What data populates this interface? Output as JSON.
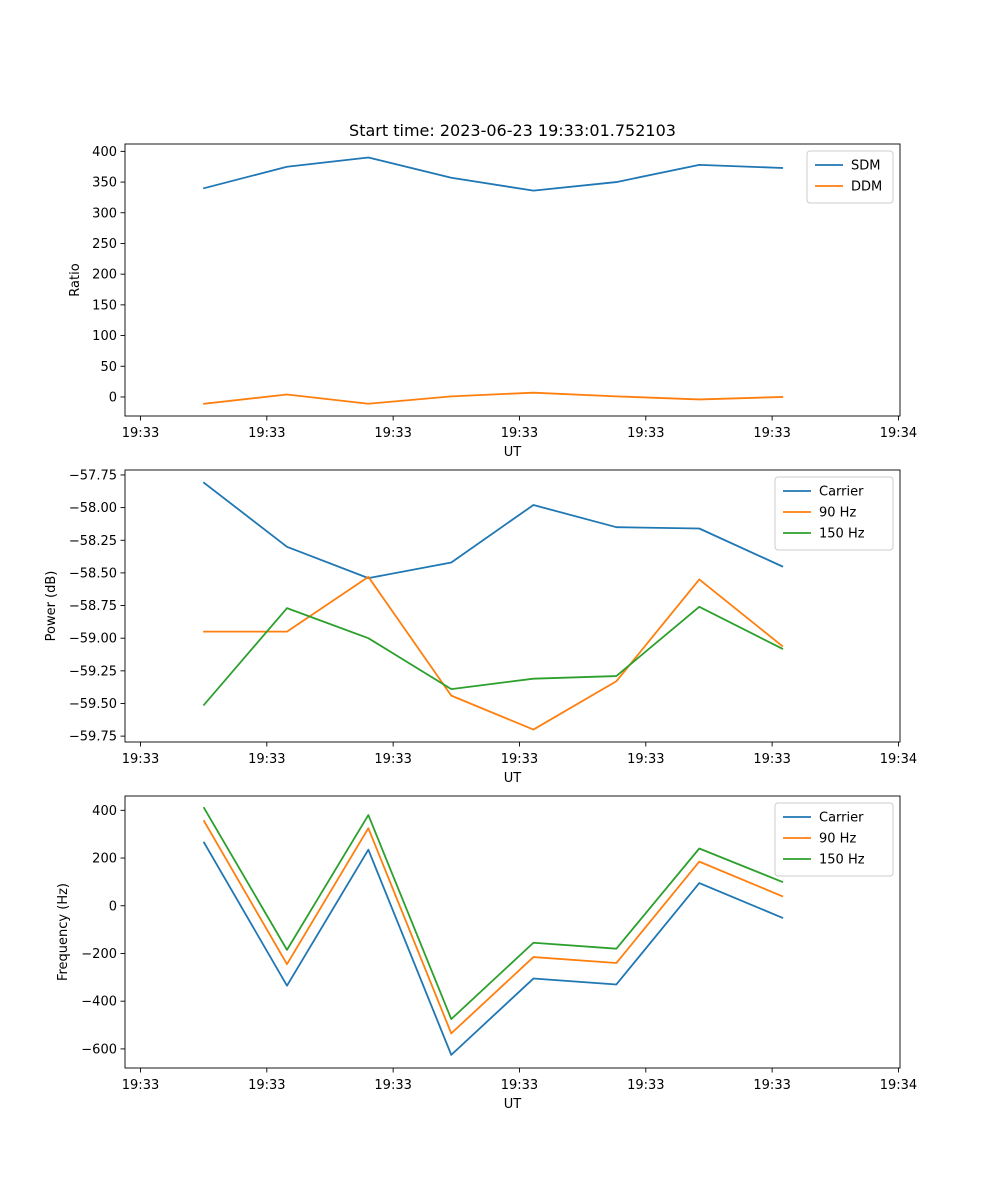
{
  "figure": {
    "title": "Start time: 2023-06-23 19:33:01.752103",
    "x_tick_labels": [
      "19:33",
      "19:33",
      "19:33",
      "19:33",
      "19:33",
      "19:33",
      "19:34"
    ]
  },
  "chart_data": [
    {
      "type": "line",
      "title": "Start time: 2023-06-23 19:33:01.752103",
      "xlabel": "UT",
      "ylabel": "Ratio",
      "x_tick_labels": [
        "19:33",
        "19:33",
        "19:33",
        "19:33",
        "19:33",
        "19:33",
        "19:34"
      ],
      "y_ticks": [
        0,
        50,
        100,
        150,
        200,
        250,
        300,
        350,
        400
      ],
      "y_tick_labels": [
        "0",
        "50",
        "100",
        "150",
        "200",
        "250",
        "300",
        "350",
        "400"
      ],
      "ylim": [
        -31,
        412
      ],
      "legend_position": "top-right",
      "grid": false,
      "series": [
        {
          "name": "SDM",
          "color": "#1f77b4",
          "values": [
            340,
            375,
            390,
            357,
            336,
            350,
            378,
            373
          ]
        },
        {
          "name": "DDM",
          "color": "#ff7f0e",
          "values": [
            -11,
            4,
            -11,
            1,
            7,
            1,
            -4,
            0
          ]
        }
      ]
    },
    {
      "type": "line",
      "title": "",
      "xlabel": "UT",
      "ylabel": "Power (dB)",
      "x_tick_labels": [
        "19:33",
        "19:33",
        "19:33",
        "19:33",
        "19:33",
        "19:33",
        "19:34"
      ],
      "y_ticks": [
        -59.75,
        -59.5,
        -59.25,
        -59.0,
        -58.75,
        -58.5,
        -58.25,
        -58.0,
        -57.75
      ],
      "y_tick_labels": [
        "−59.75",
        "−59.50",
        "−59.25",
        "−59.00",
        "−58.75",
        "−58.50",
        "−58.25",
        "−58.00",
        "−57.75"
      ],
      "ylim": [
        -59.795,
        -57.712
      ],
      "legend_position": "top-right",
      "grid": false,
      "series": [
        {
          "name": "Carrier",
          "color": "#1f77b4",
          "values": [
            -57.81,
            -58.3,
            -58.54,
            -58.42,
            -57.98,
            -58.15,
            -58.16,
            -58.45
          ]
        },
        {
          "name": "90 Hz",
          "color": "#ff7f0e",
          "values": [
            -58.95,
            -58.95,
            -58.53,
            -59.44,
            -59.7,
            -59.33,
            -58.55,
            -59.06
          ]
        },
        {
          "name": "150 Hz",
          "color": "#2ca02c",
          "values": [
            -59.51,
            -58.77,
            -59.0,
            -59.39,
            -59.31,
            -59.29,
            -58.76,
            -59.08
          ]
        }
      ]
    },
    {
      "type": "line",
      "title": "",
      "xlabel": "UT",
      "ylabel": "Frequency (Hz)",
      "x_tick_labels": [
        "19:33",
        "19:33",
        "19:33",
        "19:33",
        "19:33",
        "19:33",
        "19:34"
      ],
      "y_ticks": [
        -600,
        -400,
        -200,
        0,
        200,
        400
      ],
      "y_tick_labels": [
        "−600",
        "−400",
        "−200",
        "0",
        "200",
        "400"
      ],
      "ylim": [
        -680,
        460
      ],
      "legend_position": "top-right",
      "grid": false,
      "series": [
        {
          "name": "Carrier",
          "color": "#1f77b4",
          "values": [
            265,
            -335,
            235,
            -625,
            -305,
            -330,
            95,
            -50
          ]
        },
        {
          "name": "90 Hz",
          "color": "#ff7f0e",
          "values": [
            355,
            -245,
            325,
            -535,
            -215,
            -240,
            185,
            40
          ]
        },
        {
          "name": "150 Hz",
          "color": "#2ca02c",
          "values": [
            410,
            -185,
            380,
            -475,
            -155,
            -180,
            240,
            100
          ]
        }
      ]
    }
  ]
}
